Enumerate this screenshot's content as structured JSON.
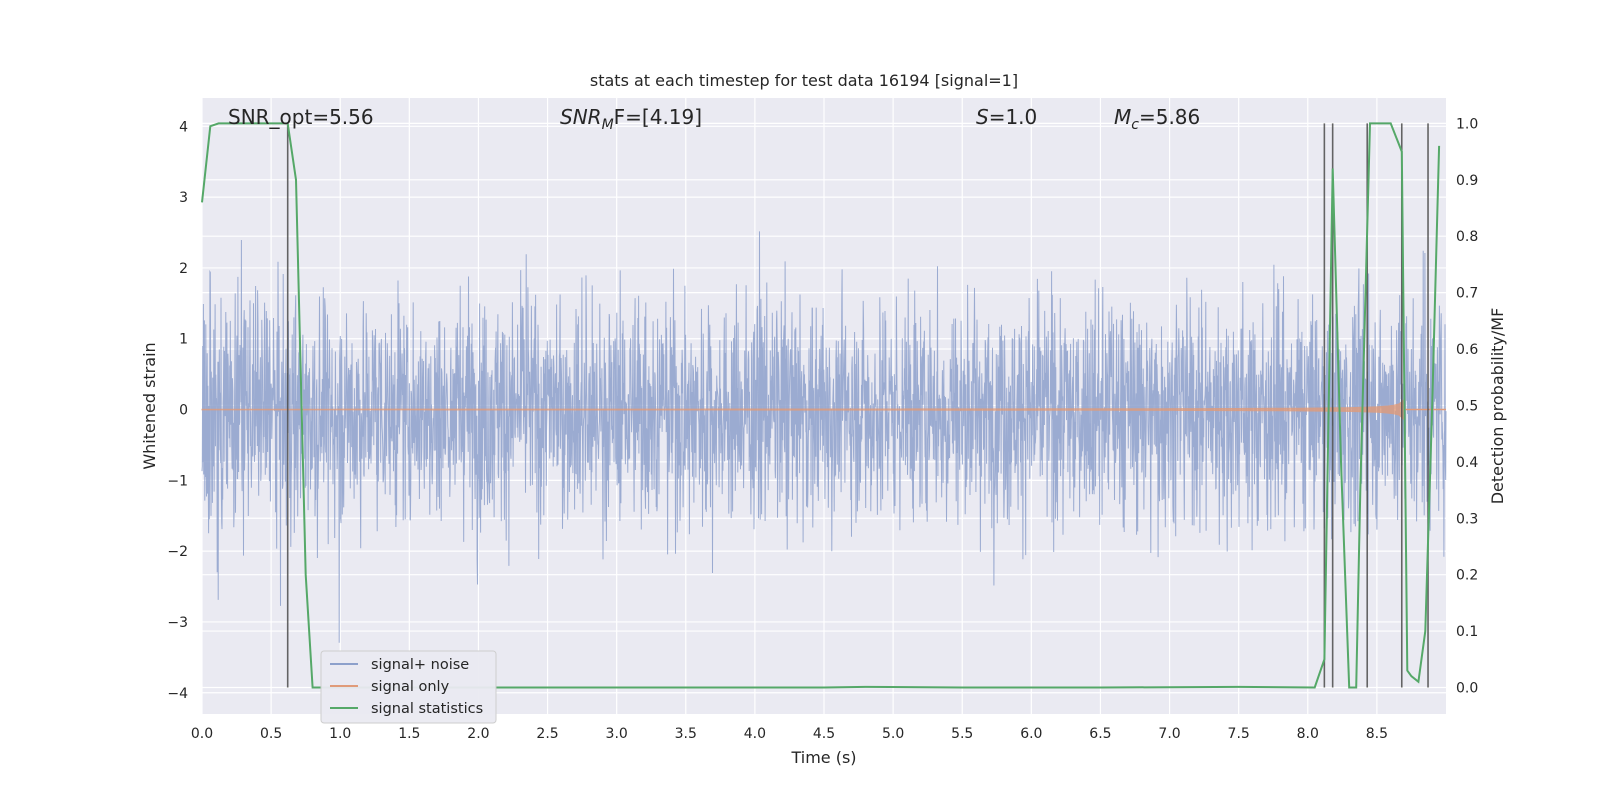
{
  "chart_data": {
    "type": "line",
    "title": "stats at each timestep for test data 16194 [signal=1]",
    "xlabel": "Time (s)",
    "ylabel_left": "Whitened strain",
    "ylabel_right": "Detection probability/MF",
    "xlim": [
      0.0,
      9.0
    ],
    "ylim_left": [
      -4.3,
      4.4
    ],
    "ylim_right": [
      -0.047,
      1.045
    ],
    "x_ticks": [
      "0.0",
      "0.5",
      "1.0",
      "1.5",
      "2.0",
      "2.5",
      "3.0",
      "3.5",
      "4.0",
      "4.5",
      "5.0",
      "5.5",
      "6.0",
      "6.5",
      "7.0",
      "7.5",
      "8.0",
      "8.5"
    ],
    "y_left_ticks": [
      "4",
      "3",
      "2",
      "1",
      "0",
      "−1",
      "−2",
      "−3",
      "−4"
    ],
    "y_right_ticks": [
      "1.0",
      "0.9",
      "0.8",
      "0.7",
      "0.6",
      "0.5",
      "0.4",
      "0.3",
      "0.2",
      "0.1",
      "0.0"
    ],
    "grid": true,
    "legend_position": "lower-left",
    "annotations": {
      "snr_opt": "SNR_opt=5.56",
      "snr_mf_sym": "SNR",
      "snr_mf_sub": "M",
      "snr_mf_rest": "F=[4.19]",
      "s_sym": "S",
      "s_rest": "=1.0",
      "mc_sym": "M",
      "mc_sub": "c",
      "mc_rest": "=5.86"
    },
    "series": [
      {
        "name": "signal+ noise",
        "color": "#8da0cb",
        "description_style": "noise band"
      },
      {
        "name": "signal only",
        "color": "#e09b7a"
      },
      {
        "name": "signal statistics",
        "color": "#55a868",
        "x": [
          0.0,
          0.06,
          0.12,
          0.2,
          0.3,
          0.4,
          0.5,
          0.6,
          0.62,
          0.68,
          0.75,
          0.8,
          1.5,
          2.5,
          3.5,
          4.5,
          4.8,
          5.5,
          6.5,
          7.5,
          8.05,
          8.12,
          8.18,
          8.24,
          8.3,
          8.35,
          8.38,
          8.45,
          8.5,
          8.6,
          8.68,
          8.72,
          8.75,
          8.8,
          8.85,
          8.9,
          8.95
        ],
        "y": [
          0.86,
          0.995,
          1.0,
          1.0,
          1.0,
          1.0,
          1.0,
          1.0,
          1.0,
          0.9,
          0.2,
          0.0,
          0.0,
          0.0,
          0.0,
          0.0,
          0.001,
          0.0,
          0.0,
          0.001,
          0.0,
          0.05,
          0.92,
          0.4,
          0.0,
          0.0,
          0.35,
          1.0,
          1.0,
          1.0,
          0.95,
          0.03,
          0.02,
          0.01,
          0.1,
          0.5,
          0.96
        ]
      },
      {
        "name": "",
        "color": "#4c4c4c",
        "x_markers": [
          0.62,
          8.12,
          8.18,
          8.43,
          8.68,
          8.87
        ]
      }
    ]
  },
  "legend": {
    "items": [
      {
        "label": "signal+ noise",
        "color": "#8da0cb"
      },
      {
        "label": "signal only",
        "color": "#e09b7a"
      },
      {
        "label": "signal statistics",
        "color": "#55a868"
      }
    ]
  }
}
